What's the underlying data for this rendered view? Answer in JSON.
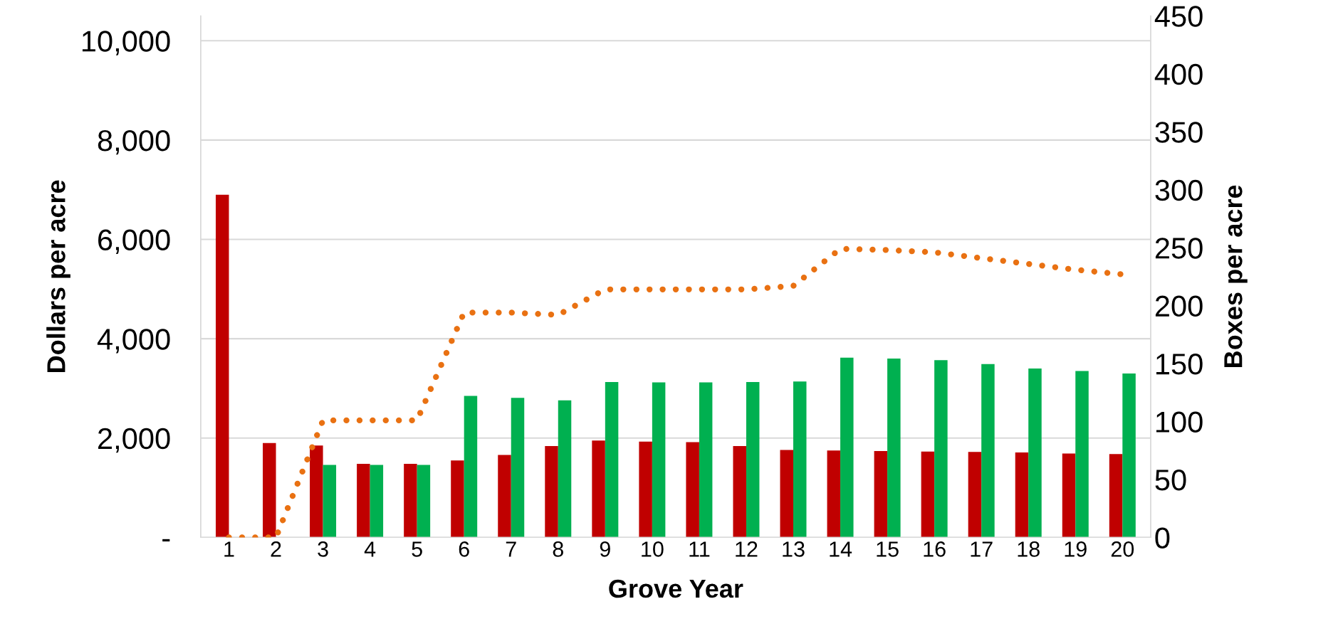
{
  "chart_data": {
    "type": "bar",
    "xlabel": "Grove Year",
    "ylabel": "Dollars per acre",
    "y2label": "Boxes per acre",
    "categories": [
      "1",
      "2",
      "3",
      "4",
      "5",
      "6",
      "7",
      "8",
      "9",
      "10",
      "11",
      "12",
      "13",
      "14",
      "15",
      "16",
      "17",
      "18",
      "19",
      "20"
    ],
    "series": [
      {
        "color": "#c00000",
        "values": [
          6900,
          1900,
          1850,
          1480,
          1480,
          1550,
          1660,
          1840,
          1950,
          1930,
          1920,
          1840,
          1760,
          1750,
          1740,
          1730,
          1720,
          1710,
          1690,
          1680
        ]
      },
      {
        "color": "#00b050",
        "values": [
          null,
          null,
          1460,
          1460,
          1460,
          2850,
          2810,
          2760,
          3130,
          3120,
          3120,
          3130,
          3140,
          3620,
          3600,
          3570,
          3490,
          3400,
          3350,
          3300
        ]
      },
      {
        "type": "line",
        "axis": "y2",
        "color": "#e97112",
        "line_style": "dotted",
        "marker": "none",
        "values": [
          0,
          0,
          101,
          101,
          101,
          194,
          194,
          192,
          214,
          214,
          214,
          214,
          217,
          249,
          248,
          246,
          241,
          236,
          231,
          227
        ]
      }
    ],
    "ylim": [
      0,
      10500
    ],
    "yticks": [
      {
        "value": 0,
        "label": "-"
      },
      {
        "value": 2000,
        "label": "2,000"
      },
      {
        "value": 4000,
        "label": "4,000"
      },
      {
        "value": 6000,
        "label": "6,000"
      },
      {
        "value": 8000,
        "label": "8,000"
      },
      {
        "value": 10000,
        "label": "10,000"
      }
    ],
    "y2lim": [
      0,
      450
    ],
    "y2ticks": [
      0,
      50,
      100,
      150,
      200,
      250,
      300,
      350,
      400,
      450
    ],
    "grid": "y"
  }
}
